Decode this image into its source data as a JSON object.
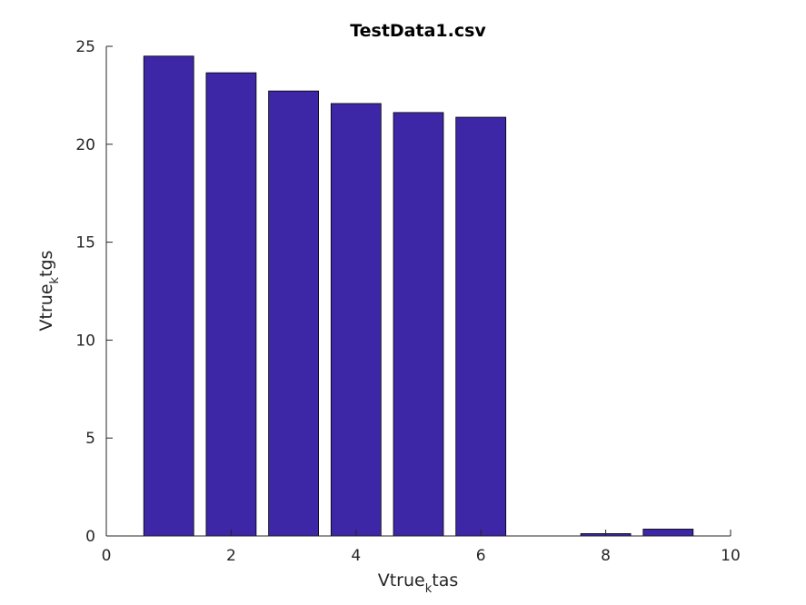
{
  "chart_data": {
    "type": "bar",
    "title": "TestData1.csv",
    "xlabel": {
      "base": "Vtrue",
      "sub": "k",
      "rest": "tas"
    },
    "ylabel": {
      "base": "Vtrue",
      "sub": "k",
      "rest": "tgs"
    },
    "x": [
      1,
      2,
      3,
      4,
      5,
      6,
      7,
      8,
      9
    ],
    "values": [
      24.5,
      23.65,
      22.72,
      22.08,
      21.62,
      21.38,
      0,
      0.12,
      0.35
    ],
    "xlim": [
      0,
      10
    ],
    "ylim": [
      0,
      25
    ],
    "xticks": [
      0,
      2,
      4,
      6,
      8,
      10
    ],
    "yticks": [
      0,
      5,
      10,
      15,
      20,
      25
    ],
    "bar_width": 0.8,
    "bar_color": "#3d27a6",
    "edge_color": "#000000",
    "grid": false,
    "legend": "none"
  }
}
